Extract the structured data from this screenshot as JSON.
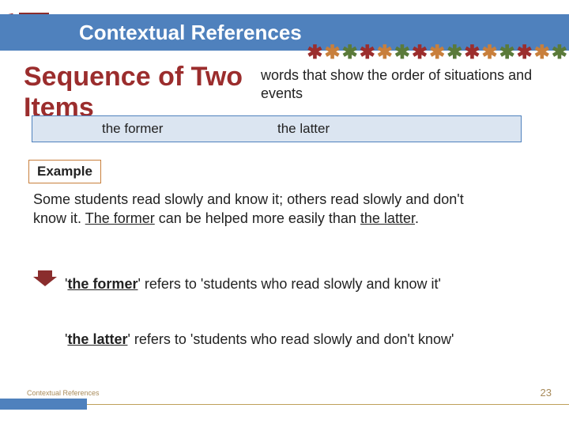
{
  "header": {
    "title": "Contextual References",
    "band_color": "#4f81bd"
  },
  "asterisk_colors": [
    "#9b2d2d",
    "#c87f3c",
    "#5a7a3a",
    "#9b2d2d",
    "#c87f3c",
    "#5a7a3a",
    "#9b2d2d",
    "#c87f3c",
    "#5a7a3a",
    "#9b2d2d",
    "#c87f3c",
    "#5a7a3a",
    "#9b2d2d",
    "#c87f3c",
    "#5a7a3a"
  ],
  "subtitle": {
    "line1": "Sequence of Two",
    "line2": "Items",
    "color": "#9b2d2d",
    "fontsize": 34
  },
  "subtitle_desc": "words that show the order of situations and events",
  "terms": {
    "left": "the former",
    "right": "the latter",
    "box_bg": "#dbe5f1",
    "box_border": "#4f81bd"
  },
  "example_label": "Example",
  "example_html": "Some students read slowly and know it; others read slowly and don't know it. <span class=\"ul\">The former</span> can be helped more easily than <span class=\"ul\">the latter</span>.",
  "ref1_html": "'<span class=\"ul bold\">the former</span>' refers to 'students who read slowly and know it'",
  "ref2_html": "'<span class=\"ul bold\">the latter</span>' refers to 'students who read slowly and don't know'",
  "footer": {
    "label": "Contextual References",
    "page": "23",
    "bar_color": "#4f81bd",
    "line_color": "#bfa15a",
    "text_color": "#a88b5a"
  }
}
